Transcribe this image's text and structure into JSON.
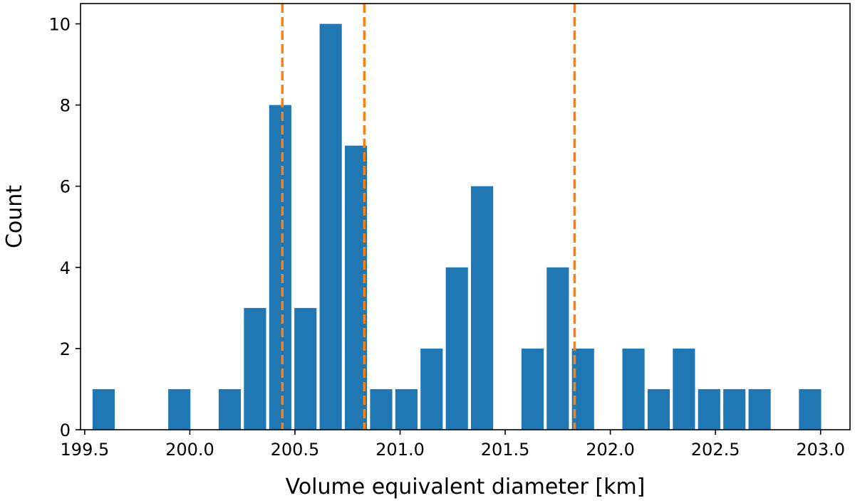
{
  "chart_data": {
    "type": "bar",
    "title": "",
    "xlabel": "Volume equivalent diameter [km]",
    "ylabel": "Count",
    "xlim": [
      199.48,
      203.14
    ],
    "ylim": [
      0,
      10.5
    ],
    "bin_width": 0.12,
    "x_ticks": [
      "199.5",
      "200.0",
      "200.5",
      "201.0",
      "201.5",
      "202.0",
      "202.5",
      "203.0"
    ],
    "y_ticks": [
      "0",
      "2",
      "4",
      "6",
      "8",
      "10"
    ],
    "grid": false,
    "legend": "none",
    "bars": [
      {
        "x": 199.59,
        "count": 1
      },
      {
        "x": 199.95,
        "count": 1
      },
      {
        "x": 200.19,
        "count": 1
      },
      {
        "x": 200.31,
        "count": 3
      },
      {
        "x": 200.43,
        "count": 8
      },
      {
        "x": 200.55,
        "count": 3
      },
      {
        "x": 200.67,
        "count": 10
      },
      {
        "x": 200.79,
        "count": 7
      },
      {
        "x": 200.91,
        "count": 1
      },
      {
        "x": 201.03,
        "count": 1
      },
      {
        "x": 201.15,
        "count": 2
      },
      {
        "x": 201.27,
        "count": 4
      },
      {
        "x": 201.39,
        "count": 6
      },
      {
        "x": 201.63,
        "count": 2
      },
      {
        "x": 201.75,
        "count": 4
      },
      {
        "x": 201.87,
        "count": 2
      },
      {
        "x": 202.11,
        "count": 2
      },
      {
        "x": 202.23,
        "count": 1
      },
      {
        "x": 202.35,
        "count": 2
      },
      {
        "x": 202.47,
        "count": 1
      },
      {
        "x": 202.59,
        "count": 1
      },
      {
        "x": 202.71,
        "count": 1
      },
      {
        "x": 202.95,
        "count": 1
      }
    ],
    "reference_lines": [
      200.44,
      200.83,
      201.83
    ],
    "colors": {
      "bar": "#1f77b4",
      "reference_line": "#ff7f0e",
      "axis": "#000000"
    }
  }
}
